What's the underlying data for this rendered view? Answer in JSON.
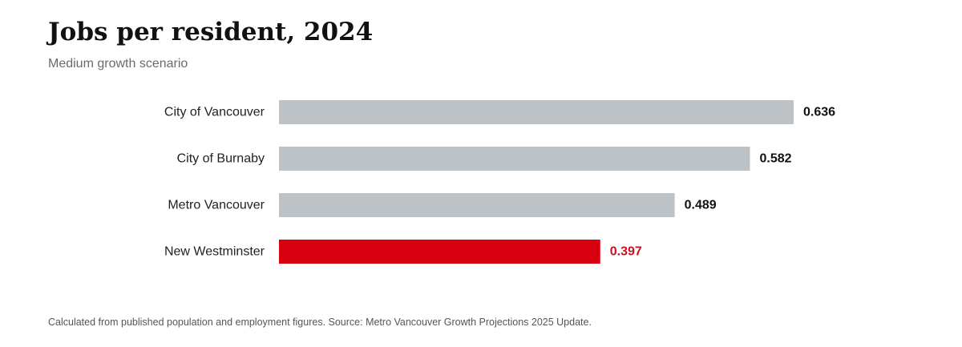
{
  "title": "Jobs per resident, 2024",
  "subtitle": "Medium growth scenario",
  "footnote": "Calculated from published population and employment figures. Source: Metro Vancouver Growth Projections 2025 Update.",
  "colors": {
    "default_bar": "#bcc2c6",
    "highlight_bar": "#d6000f",
    "category_label": "#222222",
    "default_value_label": "#111111",
    "highlight_value_label": "#c8101e"
  },
  "chart_data": {
    "type": "bar",
    "orientation": "horizontal",
    "title": "Jobs per resident, 2024",
    "subtitle": "Medium growth scenario",
    "xlabel": "",
    "ylabel": "",
    "grid": false,
    "legend": "none",
    "categories": [
      "City of Vancouver",
      "City of Burnaby",
      "Metro Vancouver",
      "New Westminster"
    ],
    "values": [
      0.636,
      0.582,
      0.489,
      0.397
    ],
    "value_labels": [
      "0.636",
      "0.582",
      "0.489",
      "0.397"
    ],
    "highlighted": [
      "New Westminster"
    ],
    "xlim": [
      0,
      0.636
    ]
  }
}
